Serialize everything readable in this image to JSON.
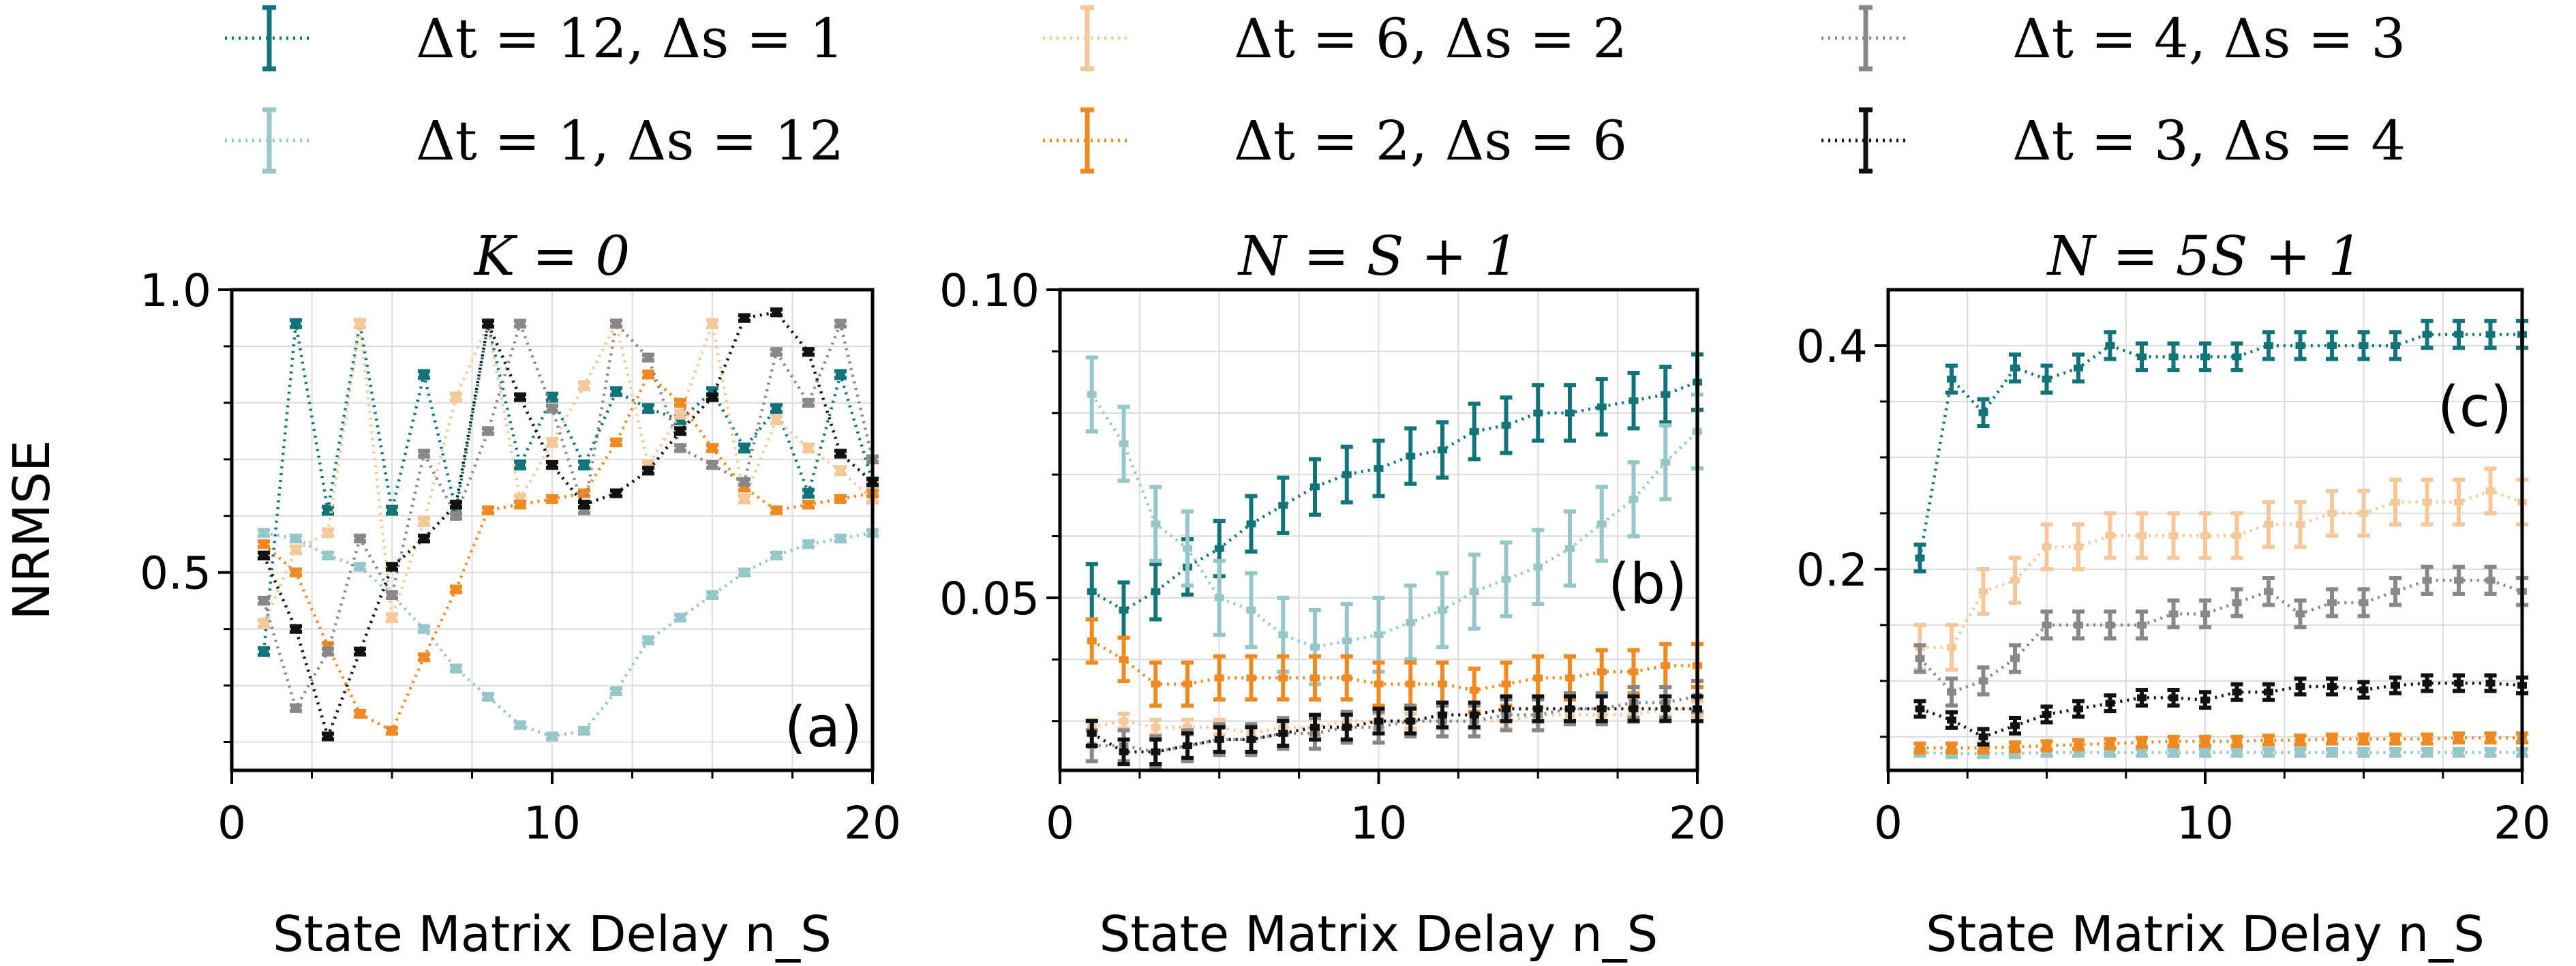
{
  "legend": [
    {
      "key": "s12",
      "label": "Δt = 12, Δs = 1",
      "color": "#127479"
    },
    {
      "key": "s1",
      "label": "Δt = 1, Δs = 12",
      "color": "#96c6c8"
    },
    {
      "key": "s6",
      "label": "Δt = 6, Δs = 2",
      "color": "#f5c89a"
    },
    {
      "key": "s2",
      "label": "Δt = 2, Δs = 6",
      "color": "#ef8a22"
    },
    {
      "key": "s4",
      "label": "Δt = 4, Δs = 3",
      "color": "#888888"
    },
    {
      "key": "s3",
      "label": "Δt = 3, Δs = 4",
      "color": "#111111"
    }
  ],
  "chart_data": [
    {
      "type": "line",
      "title": "K = 0",
      "xlabel": "State Matrix Delay n_S",
      "ylabel": "NRMSE",
      "panel_label": "(a)",
      "xlim": [
        0,
        20
      ],
      "ylim": [
        0.15,
        1.0
      ],
      "xticks": [
        0,
        10,
        20
      ],
      "yticks": [
        {
          "v": 0.5,
          "label": "0.5"
        },
        {
          "v": 1.0,
          "label": "1.0"
        }
      ],
      "minor_yticks": [
        0.2,
        0.3,
        0.4,
        0.6,
        0.7,
        0.8,
        0.9
      ],
      "grid": true,
      "x": [
        1,
        2,
        3,
        4,
        5,
        6,
        7,
        8,
        9,
        10,
        11,
        12,
        13,
        14,
        15,
        16,
        17,
        18,
        19,
        20
      ],
      "series": [
        {
          "key": "s12",
          "values": [
            0.36,
            0.94,
            0.61,
            0.94,
            0.61,
            0.85,
            0.61,
            0.94,
            0.69,
            0.81,
            0.69,
            0.82,
            0.79,
            0.77,
            0.82,
            0.72,
            0.79,
            0.64,
            0.85,
            0.66
          ],
          "err": 0.006
        },
        {
          "key": "s1",
          "values": [
            0.57,
            0.56,
            0.53,
            0.51,
            0.46,
            0.4,
            0.33,
            0.28,
            0.23,
            0.21,
            0.22,
            0.29,
            0.38,
            0.42,
            0.46,
            0.5,
            0.53,
            0.55,
            0.56,
            0.57
          ],
          "err": 0.005
        },
        {
          "key": "s6",
          "values": [
            0.41,
            0.54,
            0.57,
            0.94,
            0.42,
            0.59,
            0.81,
            0.94,
            0.63,
            0.73,
            0.83,
            0.94,
            0.69,
            0.78,
            0.94,
            0.63,
            0.77,
            0.72,
            0.68,
            0.63
          ],
          "err": 0.006
        },
        {
          "key": "s2",
          "values": [
            0.55,
            0.5,
            0.37,
            0.25,
            0.22,
            0.35,
            0.47,
            0.61,
            0.62,
            0.63,
            0.64,
            0.73,
            0.85,
            0.8,
            0.72,
            0.65,
            0.61,
            0.62,
            0.63,
            0.64
          ],
          "err": 0.005
        },
        {
          "key": "s4",
          "values": [
            0.45,
            0.26,
            0.36,
            0.56,
            0.46,
            0.71,
            0.6,
            0.75,
            0.94,
            0.79,
            0.61,
            0.94,
            0.88,
            0.72,
            0.69,
            0.66,
            0.89,
            0.8,
            0.94,
            0.7
          ],
          "err": 0.005
        },
        {
          "key": "s3",
          "values": [
            0.53,
            0.4,
            0.21,
            0.36,
            0.51,
            0.56,
            0.62,
            0.94,
            0.81,
            0.69,
            0.62,
            0.64,
            0.68,
            0.75,
            0.81,
            0.95,
            0.96,
            0.89,
            0.71,
            0.66
          ],
          "err": 0.005
        }
      ]
    },
    {
      "type": "line",
      "title": "N = S + 1",
      "xlabel": "State Matrix Delay n_S",
      "ylabel": "",
      "panel_label": "(b)",
      "xlim": [
        0,
        20
      ],
      "ylim": [
        0.022,
        0.1
      ],
      "xticks": [
        0,
        10,
        20
      ],
      "yticks": [
        {
          "v": 0.05,
          "label": "0.05"
        },
        {
          "v": 0.1,
          "label": "0.10"
        }
      ],
      "minor_yticks": [
        0.03,
        0.04,
        0.06,
        0.07,
        0.08,
        0.09
      ],
      "grid": true,
      "x": [
        1,
        2,
        3,
        4,
        5,
        6,
        7,
        8,
        9,
        10,
        11,
        12,
        13,
        14,
        15,
        16,
        17,
        18,
        19,
        20
      ],
      "series": [
        {
          "key": "s12",
          "values": [
            0.051,
            0.048,
            0.051,
            0.055,
            0.058,
            0.062,
            0.065,
            0.068,
            0.07,
            0.071,
            0.073,
            0.074,
            0.077,
            0.078,
            0.08,
            0.08,
            0.081,
            0.082,
            0.083,
            0.085
          ],
          "err": 0.0045
        },
        {
          "key": "s1",
          "values": [
            0.083,
            0.075,
            0.062,
            0.058,
            0.05,
            0.048,
            0.044,
            0.042,
            0.043,
            0.044,
            0.046,
            0.048,
            0.051,
            0.053,
            0.055,
            0.058,
            0.062,
            0.066,
            0.072,
            0.077
          ],
          "err": 0.006
        },
        {
          "key": "s6",
          "values": [
            0.029,
            0.03,
            0.029,
            0.029,
            0.029,
            0.028,
            0.029,
            0.029,
            0.03,
            0.03,
            0.03,
            0.03,
            0.03,
            0.03,
            0.031,
            0.031,
            0.031,
            0.031,
            0.032,
            0.032
          ],
          "err": 0.0012
        },
        {
          "key": "s2",
          "values": [
            0.043,
            0.04,
            0.036,
            0.036,
            0.037,
            0.037,
            0.037,
            0.037,
            0.037,
            0.036,
            0.036,
            0.036,
            0.035,
            0.036,
            0.037,
            0.037,
            0.038,
            0.038,
            0.039,
            0.039
          ],
          "err": 0.0035
        },
        {
          "key": "s4",
          "values": [
            0.026,
            0.026,
            0.025,
            0.026,
            0.027,
            0.027,
            0.028,
            0.028,
            0.029,
            0.029,
            0.03,
            0.03,
            0.03,
            0.031,
            0.031,
            0.032,
            0.032,
            0.033,
            0.033,
            0.034
          ],
          "err": 0.0025
        },
        {
          "key": "s3",
          "values": [
            0.028,
            0.025,
            0.025,
            0.026,
            0.027,
            0.027,
            0.028,
            0.029,
            0.029,
            0.03,
            0.03,
            0.031,
            0.031,
            0.032,
            0.032,
            0.032,
            0.032,
            0.032,
            0.032,
            0.032
          ],
          "err": 0.002
        }
      ]
    },
    {
      "type": "line",
      "title": "N = 5S + 1",
      "xlabel": "State Matrix Delay n_S",
      "ylabel": "",
      "panel_label": "(c)",
      "xlim": [
        0,
        20
      ],
      "ylim": [
        0.02,
        0.45
      ],
      "xticks": [
        0,
        10,
        20
      ],
      "yticks": [
        {
          "v": 0.2,
          "label": "0.2"
        },
        {
          "v": 0.4,
          "label": "0.4"
        }
      ],
      "minor_yticks": [
        0.05,
        0.1,
        0.15,
        0.25,
        0.3,
        0.35
      ],
      "grid": true,
      "x": [
        1,
        2,
        3,
        4,
        5,
        6,
        7,
        8,
        9,
        10,
        11,
        12,
        13,
        14,
        15,
        16,
        17,
        18,
        19,
        20
      ],
      "series": [
        {
          "key": "s12",
          "values": [
            0.21,
            0.37,
            0.34,
            0.38,
            0.37,
            0.38,
            0.4,
            0.39,
            0.39,
            0.39,
            0.39,
            0.4,
            0.4,
            0.4,
            0.4,
            0.4,
            0.41,
            0.41,
            0.41,
            0.41
          ],
          "err": 0.012
        },
        {
          "key": "s1",
          "values": [
            0.036,
            0.035,
            0.035,
            0.035,
            0.036,
            0.036,
            0.036,
            0.036,
            0.036,
            0.036,
            0.036,
            0.036,
            0.036,
            0.036,
            0.036,
            0.036,
            0.036,
            0.036,
            0.036,
            0.036
          ],
          "err": 0.003
        },
        {
          "key": "s6",
          "values": [
            0.13,
            0.13,
            0.18,
            0.19,
            0.22,
            0.22,
            0.23,
            0.23,
            0.23,
            0.23,
            0.23,
            0.24,
            0.24,
            0.25,
            0.25,
            0.26,
            0.26,
            0.26,
            0.27,
            0.26
          ],
          "err": 0.02
        },
        {
          "key": "s2",
          "values": [
            0.04,
            0.04,
            0.04,
            0.041,
            0.042,
            0.043,
            0.044,
            0.045,
            0.046,
            0.046,
            0.046,
            0.047,
            0.047,
            0.048,
            0.048,
            0.048,
            0.048,
            0.049,
            0.049,
            0.049
          ],
          "err": 0.004
        },
        {
          "key": "s4",
          "values": [
            0.12,
            0.09,
            0.1,
            0.12,
            0.15,
            0.15,
            0.15,
            0.15,
            0.16,
            0.16,
            0.17,
            0.18,
            0.16,
            0.17,
            0.17,
            0.18,
            0.19,
            0.19,
            0.19,
            0.18
          ],
          "err": 0.012
        },
        {
          "key": "s3",
          "values": [
            0.075,
            0.065,
            0.05,
            0.06,
            0.07,
            0.075,
            0.08,
            0.085,
            0.085,
            0.083,
            0.09,
            0.09,
            0.095,
            0.095,
            0.092,
            0.096,
            0.098,
            0.098,
            0.098,
            0.096
          ],
          "err": 0.007
        }
      ]
    }
  ]
}
